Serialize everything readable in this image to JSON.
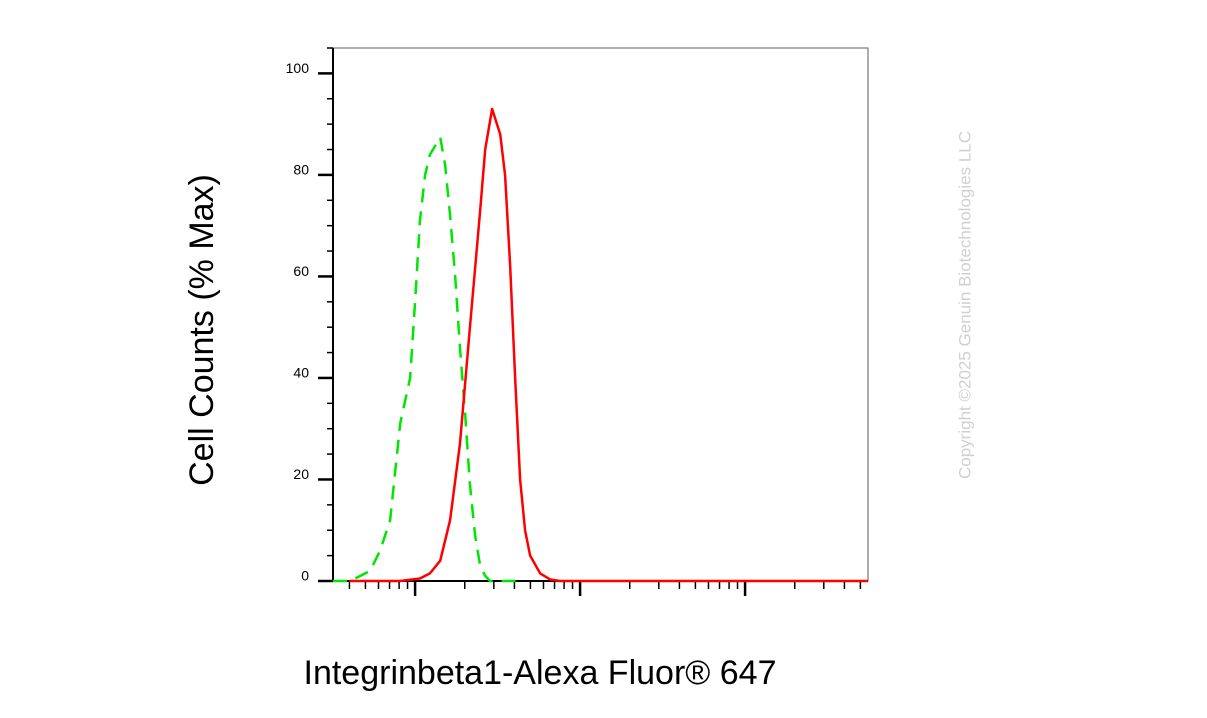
{
  "chart_data": {
    "type": "line",
    "x_label": "Integrinbeta1-Alexa Fluor® 647",
    "y_label": "Cell Counts (% Max)",
    "watermark": "Copyright ©2025 Genuin Biotechnologies LLC",
    "x_scale": "log",
    "xlim": [
      31.8,
      55600
    ],
    "xticks": [
      100,
      1000,
      10000
    ],
    "ylim": [
      0,
      105
    ],
    "yticks": [
      0,
      20,
      40,
      60,
      80,
      100
    ],
    "series": [
      {
        "color": "#00e600",
        "dash": true,
        "x": [
          31.8,
          40.4,
          53.4,
          61.4,
          70.6,
          81.2,
          93.3,
          100,
          107,
          115,
          123,
          142,
          152,
          163,
          175,
          187,
          201,
          215,
          231,
          248,
          266,
          285,
          433
        ],
        "values": [
          0,
          0,
          2,
          6,
          12,
          31,
          40,
          55,
          71,
          80,
          84,
          87.4,
          82,
          72,
          60,
          46,
          33,
          19,
          9,
          3,
          1,
          0,
          0
        ]
      },
      {
        "color": "#ff0000",
        "dash": false,
        "x": [
          40,
          81,
          107,
          123,
          142,
          163,
          187,
          215,
          248,
          266,
          293,
          328,
          351,
          377,
          404,
          433,
          464,
          498,
          573,
          658,
          757,
          2000,
          10000,
          55600
        ],
        "values": [
          0,
          0,
          0.5,
          1.5,
          4,
          12,
          27,
          50,
          73,
          85,
          93,
          88,
          80,
          62,
          40,
          20,
          10,
          5,
          1.5,
          0.3,
          0,
          0,
          0,
          0
        ]
      }
    ]
  }
}
